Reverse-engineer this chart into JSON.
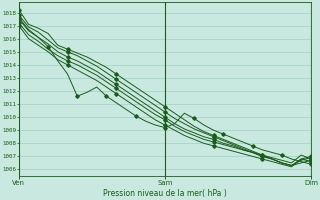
{
  "title": "Pression niveau de la mer( hPa )",
  "bg_color": "#c8e8e0",
  "plot_bg_color": "#c8e8e0",
  "grid_color": "#98c8c0",
  "line_color": "#1a5c1a",
  "marker_color": "#1a5c1a",
  "ylim": [
    1005.5,
    1018.8
  ],
  "yticks": [
    1006,
    1007,
    1008,
    1009,
    1010,
    1011,
    1012,
    1013,
    1014,
    1015,
    1016,
    1017,
    1018
  ],
  "xtick_labels": [
    "Ven",
    "Sam",
    "Dim"
  ],
  "xtick_positions": [
    0.0,
    0.5,
    1.0
  ],
  "lines": [
    [
      1018.2,
      1017.1,
      1016.8,
      1016.4,
      1015.5,
      1015.2,
      1014.9,
      1014.6,
      1014.2,
      1013.8,
      1013.3,
      1012.8,
      1012.3,
      1011.8,
      1011.3,
      1010.8,
      1010.3,
      1009.8,
      1009.3,
      1008.9,
      1008.6,
      1008.3,
      1008.0,
      1007.7,
      1007.4,
      1007.1,
      1006.8,
      1006.5,
      1006.3,
      1006.5,
      1006.7
    ],
    [
      1017.8,
      1016.9,
      1016.5,
      1015.9,
      1015.3,
      1015.0,
      1014.7,
      1014.3,
      1013.9,
      1013.4,
      1012.9,
      1012.4,
      1011.9,
      1011.4,
      1010.9,
      1010.4,
      1009.9,
      1009.5,
      1009.1,
      1008.8,
      1008.5,
      1008.2,
      1007.9,
      1007.6,
      1007.3,
      1007.0,
      1006.8,
      1006.5,
      1006.3,
      1006.7,
      1006.9
    ],
    [
      1017.5,
      1016.6,
      1016.1,
      1015.6,
      1015.0,
      1014.6,
      1014.3,
      1013.9,
      1013.5,
      1013.0,
      1012.5,
      1012.0,
      1011.5,
      1011.0,
      1010.5,
      1010.0,
      1009.5,
      1009.1,
      1008.8,
      1008.5,
      1008.3,
      1008.0,
      1007.8,
      1007.5,
      1007.3,
      1007.0,
      1006.8,
      1006.5,
      1006.3,
      1006.8,
      1007.0
    ],
    [
      1017.2,
      1016.3,
      1015.8,
      1015.2,
      1014.7,
      1014.3,
      1014.0,
      1013.6,
      1013.2,
      1012.7,
      1012.2,
      1011.7,
      1011.2,
      1010.7,
      1010.2,
      1009.8,
      1009.3,
      1008.9,
      1008.6,
      1008.3,
      1008.1,
      1007.9,
      1007.7,
      1007.5,
      1007.3,
      1007.1,
      1006.9,
      1006.7,
      1006.5,
      1007.1,
      1006.8
    ],
    [
      1017.0,
      1016.0,
      1015.5,
      1015.0,
      1014.4,
      1014.0,
      1013.6,
      1013.2,
      1012.8,
      1012.3,
      1011.8,
      1011.3,
      1010.8,
      1010.3,
      1009.8,
      1009.4,
      1009.0,
      1008.6,
      1008.3,
      1008.0,
      1007.8,
      1007.6,
      1007.4,
      1007.2,
      1007.0,
      1006.8,
      1006.6,
      1006.4,
      1006.2,
      1006.8,
      1006.6
    ]
  ],
  "spiky_line": [
    1017.6,
    1016.7,
    1016.1,
    1015.4,
    1014.3,
    1013.3,
    1011.6,
    1011.9,
    1012.3,
    1011.6,
    1011.1,
    1010.6,
    1010.1,
    1009.7,
    1009.4,
    1009.2,
    1009.5,
    1010.3,
    1009.9,
    1009.4,
    1009.0,
    1008.7,
    1008.4,
    1008.1,
    1007.8,
    1007.5,
    1007.3,
    1007.1,
    1006.8,
    1006.6,
    1006.4
  ]
}
